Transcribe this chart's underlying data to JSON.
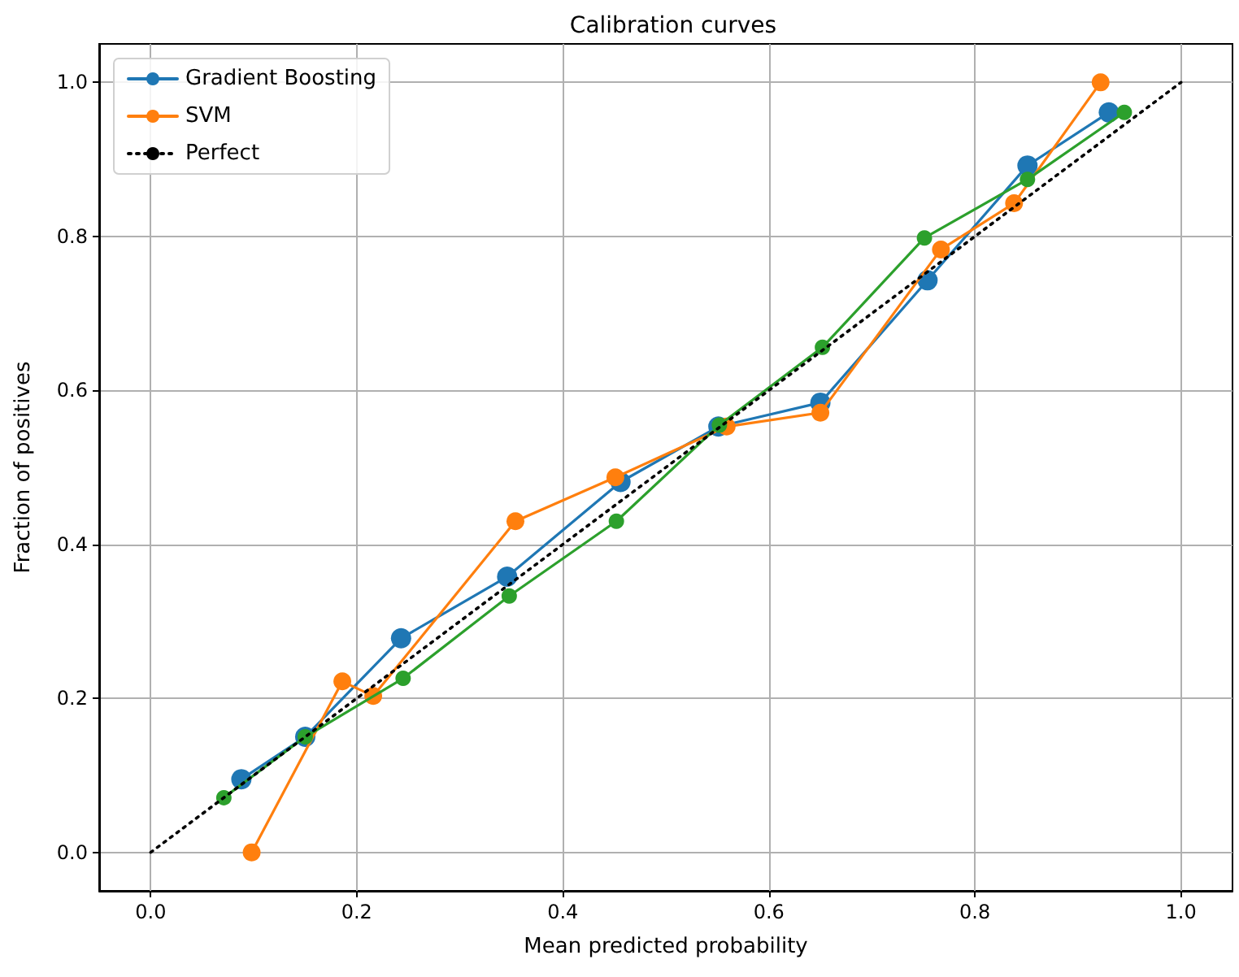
{
  "chart_data": {
    "type": "line",
    "title": "Calibration curves",
    "xlabel": "Mean predicted probability",
    "ylabel": "Fraction of positives",
    "xlim": [
      -0.05,
      1.05
    ],
    "ylim": [
      -0.05,
      1.05
    ],
    "xticks": [
      {
        "value": 0,
        "label": "0.0"
      },
      {
        "value": 0.2,
        "label": "0.2"
      },
      {
        "value": 0.4,
        "label": "0.4"
      },
      {
        "value": 0.6,
        "label": "0.6"
      },
      {
        "value": 0.8,
        "label": "0.8"
      },
      {
        "value": 1,
        "label": "1.0"
      }
    ],
    "yticks": [
      {
        "value": 0,
        "label": "0.0"
      },
      {
        "value": 0.2,
        "label": "0.2"
      },
      {
        "value": 0.4,
        "label": "0.4"
      },
      {
        "value": 0.6,
        "label": "0.6"
      },
      {
        "value": 0.8,
        "label": "0.8"
      },
      {
        "value": 1,
        "label": "1.0"
      }
    ],
    "grid": true,
    "legend": "top left",
    "marker": "circle",
    "line_style": "solid",
    "series": [
      {
        "name": "Gradient Boosting",
        "color": "#1f77b4",
        "x": [
          0.088,
          0.15,
          0.243,
          0.346,
          0.456,
          0.551,
          0.65,
          0.754,
          0.851,
          0.93
        ],
        "values": [
          0.095,
          0.15,
          0.278,
          0.358,
          0.481,
          0.553,
          0.584,
          0.743,
          0.892,
          0.961
        ]
      },
      {
        "name": "SVM",
        "color": "#ff7f0e",
        "x": [
          0.098,
          0.186,
          0.216,
          0.354,
          0.451,
          0.559,
          0.65,
          0.767,
          0.838,
          0.922
        ],
        "values": [
          0,
          0.222,
          0.203,
          0.43,
          0.487,
          0.553,
          0.571,
          0.783,
          0.843,
          1.0
        ]
      },
      {
        "color": "#2ca02c",
        "x": [
          0.071,
          0.15,
          0.245,
          0.348,
          0.452,
          0.552,
          0.652,
          0.751,
          0.851,
          0.945
        ],
        "values": [
          0.071,
          0.15,
          0.226,
          0.333,
          0.43,
          0.555,
          0.656,
          0.798,
          0.874,
          0.961
        ]
      },
      {
        "name": "Perfect",
        "color": "#000000",
        "x": [
          0,
          1
        ],
        "values": [
          0,
          1
        ],
        "marker": "none",
        "line_style": "dotted"
      }
    ]
  }
}
